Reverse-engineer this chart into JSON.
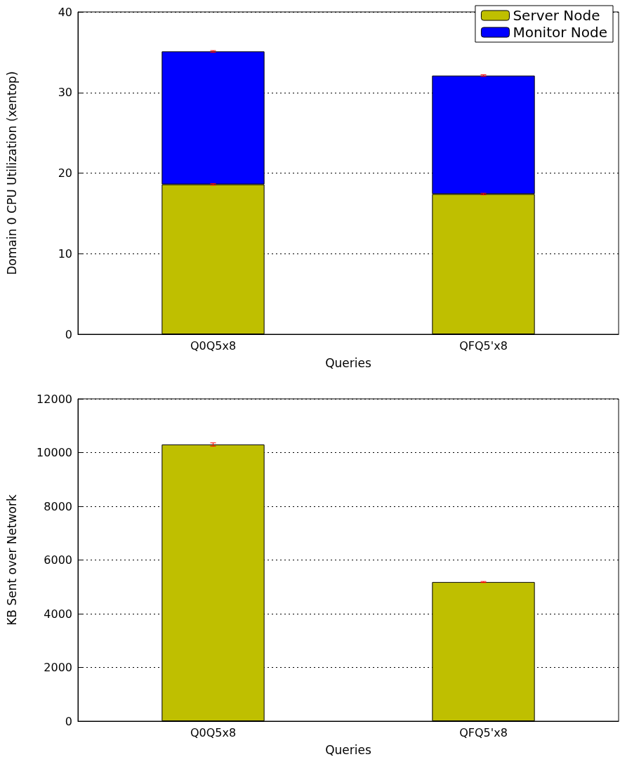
{
  "chart_data": [
    {
      "type": "bar",
      "xlabel": "Queries",
      "ylabel": "Domain 0 CPU Utilization (xentop)",
      "categories": [
        "Q0Q5x8",
        "QFQ5'x8"
      ],
      "stacked": true,
      "series": [
        {
          "name": "Server Node",
          "color": "#bfbf00",
          "values": [
            18.6,
            17.4
          ],
          "errors": [
            0.1,
            0.1
          ]
        },
        {
          "name": "Monitor Node",
          "color": "#0000ff",
          "values": [
            16.5,
            14.7
          ],
          "errors": [
            0.1,
            0.1
          ]
        }
      ],
      "ylim": [
        0,
        40
      ],
      "yticks": [
        0,
        10,
        20,
        30,
        40
      ],
      "grid": "y",
      "legend": "top right"
    },
    {
      "type": "bar",
      "xlabel": "Queries",
      "ylabel": "KB Sent over Network",
      "categories": [
        "Q0Q5x8",
        "QFQ5'x8"
      ],
      "series": [
        {
          "color": "#bfbf00",
          "values": [
            10300,
            5180
          ],
          "errors": [
            60,
            20
          ]
        }
      ],
      "ylim": [
        0,
        12000
      ],
      "yticks": [
        0,
        2000,
        4000,
        6000,
        8000,
        10000,
        12000
      ],
      "grid": "y"
    }
  ]
}
